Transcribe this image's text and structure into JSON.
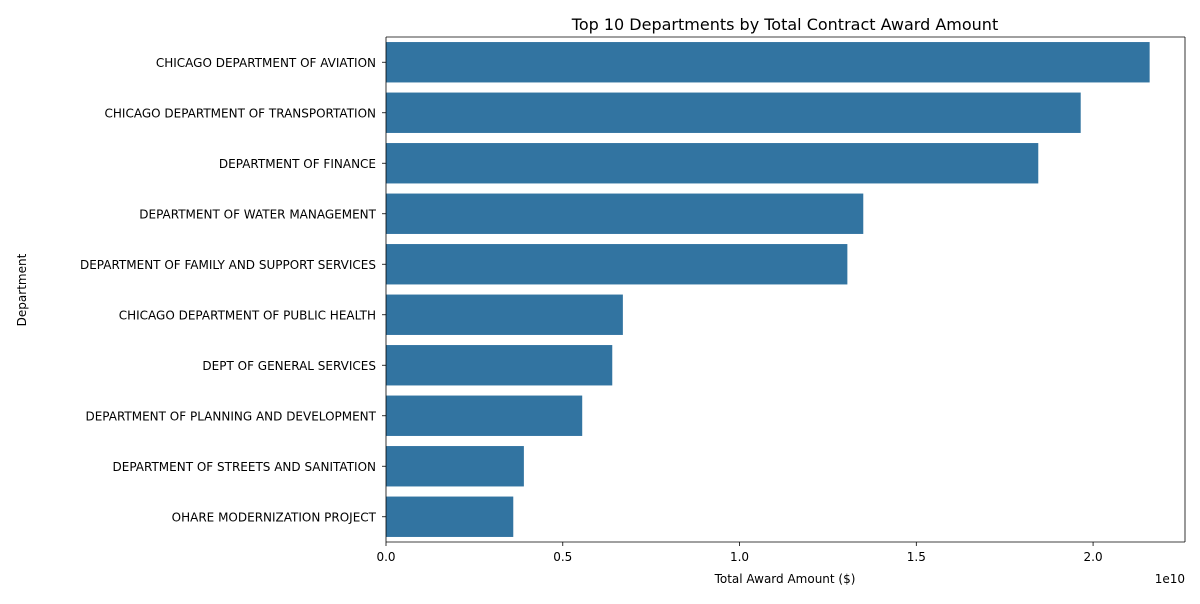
{
  "chart_data": {
    "type": "bar",
    "orientation": "horizontal",
    "title": "Top 10 Departments by Total Contract Award Amount",
    "xlabel": "Total Award Amount ($)",
    "ylabel": "Department",
    "x_offset_text": "1e10",
    "xlim": [
      0,
      2.26
    ],
    "x_scale_multiplier": "1e10",
    "xticks": [
      0.0,
      0.5,
      1.0,
      1.5,
      2.0
    ],
    "xtick_labels": [
      "0.0",
      "0.5",
      "1.0",
      "1.5",
      "2.0"
    ],
    "categories": [
      "CHICAGO DEPARTMENT OF AVIATION",
      "CHICAGO DEPARTMENT OF TRANSPORTATION",
      "DEPARTMENT OF FINANCE",
      "DEPARTMENT OF WATER MANAGEMENT",
      "DEPARTMENT OF FAMILY AND SUPPORT SERVICES",
      "CHICAGO DEPARTMENT OF PUBLIC HEALTH",
      "DEPT OF GENERAL SERVICES",
      "DEPARTMENT OF PLANNING AND DEVELOPMENT",
      "DEPARTMENT OF STREETS AND SANITATION",
      "OHARE MODERNIZATION PROJECT"
    ],
    "values": [
      2.16,
      1.965,
      1.845,
      1.35,
      1.305,
      0.67,
      0.64,
      0.555,
      0.39,
      0.36
    ],
    "bar_color": "#3274a1",
    "grid": false,
    "legend": "none"
  }
}
